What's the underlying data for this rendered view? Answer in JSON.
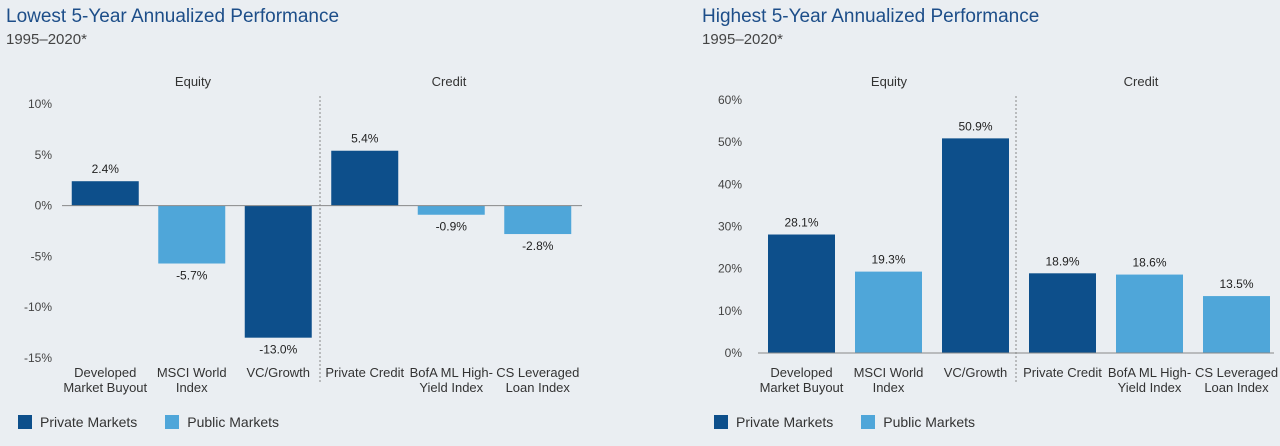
{
  "colors": {
    "private": "#0d4f8b",
    "public": "#4fa6d9"
  },
  "legend": {
    "private": "Private Markets",
    "public": "Public Markets"
  },
  "chart_data": [
    {
      "type": "bar",
      "title": "Lowest 5-Year Annualized Performance",
      "subtitle": "1995–2020*",
      "groups": [
        "Equity",
        "Credit"
      ],
      "categories": [
        [
          "Developed",
          "Market Buyout"
        ],
        [
          "MSCI World",
          "Index"
        ],
        [
          "VC/Growth"
        ],
        [
          "Private Credit"
        ],
        [
          "BofA ML High-",
          "Yield Index"
        ],
        [
          "CS Leveraged",
          "Loan Index"
        ]
      ],
      "values": [
        2.4,
        -5.7,
        -13.0,
        5.4,
        -0.9,
        -2.8
      ],
      "value_labels": [
        "2.4%",
        "-5.7%",
        "-13.0%",
        "5.4%",
        "-0.9%",
        "-2.8%"
      ],
      "kinds": [
        "private",
        "public",
        "private",
        "private",
        "public",
        "public"
      ],
      "yticks": [
        10,
        5,
        0,
        -5,
        -10,
        -15
      ],
      "ytick_labels": [
        "10%",
        "5%",
        "0%",
        "-5%",
        "-10%",
        "-15%"
      ],
      "ylim": [
        -15,
        10
      ],
      "legend_position": "bottom-left"
    },
    {
      "type": "bar",
      "title": "Highest 5-Year Annualized Performance",
      "subtitle": "1995–2020*",
      "groups": [
        "Equity",
        "Credit"
      ],
      "categories": [
        [
          "Developed",
          "Market Buyout"
        ],
        [
          "MSCI World",
          "Index"
        ],
        [
          "VC/Growth"
        ],
        [
          "Private Credit"
        ],
        [
          "BofA ML High-",
          "Yield Index"
        ],
        [
          "CS Leveraged",
          "Loan Index"
        ]
      ],
      "values": [
        28.1,
        19.3,
        50.9,
        18.9,
        18.6,
        13.5
      ],
      "value_labels": [
        "28.1%",
        "19.3%",
        "50.9%",
        "18.9%",
        "18.6%",
        "13.5%"
      ],
      "kinds": [
        "private",
        "public",
        "private",
        "private",
        "public",
        "public"
      ],
      "yticks": [
        60,
        50,
        40,
        30,
        20,
        10,
        0
      ],
      "ytick_labels": [
        "60%",
        "50%",
        "40%",
        "30%",
        "20%",
        "10%",
        "0%"
      ],
      "ylim": [
        0,
        60
      ],
      "legend_position": "bottom-left"
    }
  ]
}
